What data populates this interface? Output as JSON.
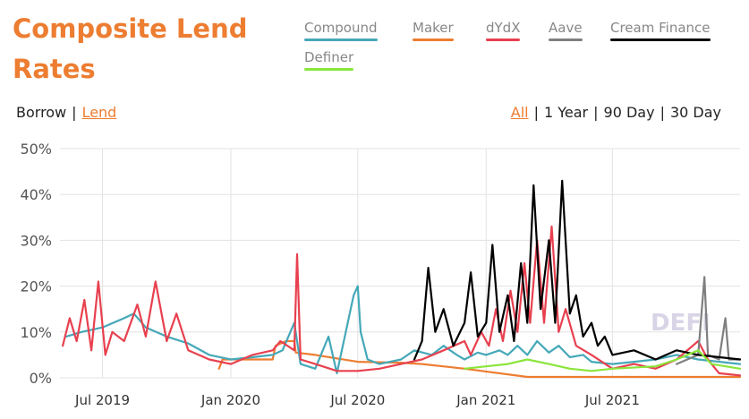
{
  "header": {
    "title": "Composite Lend Rates"
  },
  "legend": [
    {
      "name": "Compound",
      "color": "#45a8b8"
    },
    {
      "name": "Maker",
      "color": "#ed7d31"
    },
    {
      "name": "dYdX",
      "color": "#e8404f"
    },
    {
      "name": "Aave",
      "color": "#7f7f7f"
    },
    {
      "name": "Cream Finance",
      "color": "#000000"
    },
    {
      "name": "Definer",
      "color": "#8be53b"
    }
  ],
  "mode_toggle": {
    "borrow": "Borrow",
    "lend": "Lend",
    "sep": "|",
    "active": "Lend"
  },
  "range_toggle": {
    "all": "All",
    "one_year": "1 Year",
    "ninety_day": "90 Day",
    "thirty_day": "30 Day",
    "sep": "|",
    "active": "All"
  },
  "watermark": "DEFI",
  "chart_data": {
    "type": "line",
    "title": "Composite Lend Rates",
    "xlabel": "",
    "ylabel": "",
    "ylim": [
      0,
      50
    ],
    "y_ticks": [
      "0%",
      "10%",
      "20%",
      "30%",
      "40%",
      "50%"
    ],
    "x_ticks": [
      "Jul 2019",
      "Jan 2020",
      "Jul 2020",
      "Jan 2021",
      "Jul 2021"
    ],
    "x_tick_dates": [
      "2019-07-01",
      "2020-01-01",
      "2020-07-01",
      "2021-01-01",
      "2021-07-01"
    ],
    "xlim": [
      "2019-05-01",
      "2021-12-31"
    ],
    "grid": true,
    "series": [
      {
        "name": "Maker",
        "color": "#ed7d31",
        "points": [
          [
            "2019-12-15",
            2
          ],
          [
            "2019-12-20",
            4
          ],
          [
            "2020-03-01",
            4
          ],
          [
            "2020-03-05",
            7
          ],
          [
            "2020-03-20",
            8
          ],
          [
            "2020-04-01",
            8
          ],
          [
            "2020-04-03",
            5.5
          ],
          [
            "2020-05-01",
            5
          ],
          [
            "2020-07-01",
            3.5
          ],
          [
            "2020-09-01",
            3.3
          ],
          [
            "2020-10-01",
            3
          ],
          [
            "2020-12-01",
            2
          ],
          [
            "2021-03-01",
            0.2
          ],
          [
            "2021-12-31",
            0.2
          ]
        ]
      },
      {
        "name": "Compound",
        "color": "#45a8b8",
        "points": [
          [
            "2019-05-10",
            9
          ],
          [
            "2019-06-01",
            10
          ],
          [
            "2019-07-01",
            11
          ],
          [
            "2019-08-01",
            13
          ],
          [
            "2019-08-15",
            14
          ],
          [
            "2019-09-01",
            11
          ],
          [
            "2019-10-01",
            9
          ],
          [
            "2019-11-01",
            7.5
          ],
          [
            "2019-12-01",
            5
          ],
          [
            "2020-01-01",
            4
          ],
          [
            "2020-02-01",
            4.5
          ],
          [
            "2020-03-01",
            5
          ],
          [
            "2020-03-15",
            6
          ],
          [
            "2020-04-01",
            12
          ],
          [
            "2020-04-10",
            3
          ],
          [
            "2020-05-01",
            2
          ],
          [
            "2020-05-20",
            9
          ],
          [
            "2020-06-01",
            1
          ],
          [
            "2020-06-25",
            18
          ],
          [
            "2020-07-01",
            20
          ],
          [
            "2020-07-05",
            10
          ],
          [
            "2020-07-15",
            4
          ],
          [
            "2020-08-01",
            3
          ],
          [
            "2020-09-01",
            4
          ],
          [
            "2020-09-20",
            6
          ],
          [
            "2020-10-15",
            5
          ],
          [
            "2020-11-01",
            7
          ],
          [
            "2020-11-20",
            5
          ],
          [
            "2020-12-01",
            4
          ],
          [
            "2020-12-20",
            5.5
          ],
          [
            "2021-01-01",
            5
          ],
          [
            "2021-01-20",
            6
          ],
          [
            "2021-02-01",
            5
          ],
          [
            "2021-02-15",
            7
          ],
          [
            "2021-03-01",
            5
          ],
          [
            "2021-03-15",
            8
          ],
          [
            "2021-04-01",
            5.5
          ],
          [
            "2021-04-15",
            7
          ],
          [
            "2021-05-01",
            4.5
          ],
          [
            "2021-05-20",
            5
          ],
          [
            "2021-06-01",
            3.5
          ],
          [
            "2021-07-01",
            3
          ],
          [
            "2021-08-01",
            3.5
          ],
          [
            "2021-09-01",
            4
          ],
          [
            "2021-10-01",
            5
          ],
          [
            "2021-11-01",
            4
          ],
          [
            "2021-12-31",
            3
          ]
        ]
      },
      {
        "name": "dYdX",
        "color": "#e8404f",
        "points": [
          [
            "2019-05-05",
            7
          ],
          [
            "2019-05-15",
            13
          ],
          [
            "2019-05-25",
            8
          ],
          [
            "2019-06-05",
            17
          ],
          [
            "2019-06-15",
            6
          ],
          [
            "2019-06-25",
            21
          ],
          [
            "2019-07-05",
            5
          ],
          [
            "2019-07-15",
            10
          ],
          [
            "2019-08-01",
            8
          ],
          [
            "2019-08-20",
            16
          ],
          [
            "2019-09-01",
            9
          ],
          [
            "2019-09-15",
            21
          ],
          [
            "2019-10-01",
            8
          ],
          [
            "2019-10-15",
            14
          ],
          [
            "2019-11-01",
            6
          ],
          [
            "2019-12-01",
            4
          ],
          [
            "2020-01-01",
            3
          ],
          [
            "2020-02-01",
            5
          ],
          [
            "2020-03-01",
            6
          ],
          [
            "2020-03-12",
            8
          ],
          [
            "2020-04-01",
            6
          ],
          [
            "2020-04-05",
            27
          ],
          [
            "2020-04-10",
            4
          ],
          [
            "2020-05-01",
            3
          ],
          [
            "2020-06-01",
            1.5
          ],
          [
            "2020-07-01",
            1.5
          ],
          [
            "2020-08-01",
            2
          ],
          [
            "2020-09-01",
            3
          ],
          [
            "2020-10-01",
            4
          ],
          [
            "2020-11-01",
            6
          ],
          [
            "2020-12-01",
            8
          ],
          [
            "2020-12-10",
            5
          ],
          [
            "2020-12-25",
            10
          ],
          [
            "2021-01-05",
            7
          ],
          [
            "2021-01-15",
            15
          ],
          [
            "2021-01-25",
            8
          ],
          [
            "2021-02-05",
            19
          ],
          [
            "2021-02-15",
            10
          ],
          [
            "2021-02-25",
            25
          ],
          [
            "2021-03-05",
            12
          ],
          [
            "2021-03-15",
            30
          ],
          [
            "2021-03-25",
            12
          ],
          [
            "2021-04-05",
            33
          ],
          [
            "2021-04-15",
            10
          ],
          [
            "2021-04-25",
            15
          ],
          [
            "2021-05-10",
            7
          ],
          [
            "2021-06-01",
            5
          ],
          [
            "2021-07-01",
            2
          ],
          [
            "2021-08-01",
            3
          ],
          [
            "2021-09-01",
            2
          ],
          [
            "2021-10-01",
            4
          ],
          [
            "2021-11-01",
            8
          ],
          [
            "2021-11-15",
            4
          ],
          [
            "2021-12-01",
            1
          ],
          [
            "2021-12-31",
            0.5
          ]
        ]
      },
      {
        "name": "Aave",
        "color": "#7f7f7f",
        "points": [
          [
            "2021-10-01",
            3
          ],
          [
            "2021-11-01",
            5
          ],
          [
            "2021-11-10",
            22
          ],
          [
            "2021-11-15",
            5
          ],
          [
            "2021-12-01",
            4
          ],
          [
            "2021-12-10",
            13
          ],
          [
            "2021-12-15",
            4
          ],
          [
            "2021-12-31",
            4
          ]
        ]
      },
      {
        "name": "Cream Finance",
        "color": "#000000",
        "points": [
          [
            "2020-09-20",
            4
          ],
          [
            "2020-10-01",
            8
          ],
          [
            "2020-10-10",
            24
          ],
          [
            "2020-10-20",
            10
          ],
          [
            "2020-11-01",
            15
          ],
          [
            "2020-11-15",
            7
          ],
          [
            "2020-12-01",
            12
          ],
          [
            "2020-12-10",
            23
          ],
          [
            "2020-12-20",
            9
          ],
          [
            "2021-01-01",
            12
          ],
          [
            "2021-01-10",
            29
          ],
          [
            "2021-01-20",
            10
          ],
          [
            "2021-02-01",
            18
          ],
          [
            "2021-02-10",
            8
          ],
          [
            "2021-02-20",
            25
          ],
          [
            "2021-03-01",
            12
          ],
          [
            "2021-03-10",
            42
          ],
          [
            "2021-03-20",
            15
          ],
          [
            "2021-04-01",
            30
          ],
          [
            "2021-04-10",
            12
          ],
          [
            "2021-04-20",
            43
          ],
          [
            "2021-05-01",
            14
          ],
          [
            "2021-05-10",
            18
          ],
          [
            "2021-05-20",
            9
          ],
          [
            "2021-06-01",
            12
          ],
          [
            "2021-06-10",
            7
          ],
          [
            "2021-06-20",
            9
          ],
          [
            "2021-07-01",
            5
          ],
          [
            "2021-08-01",
            6
          ],
          [
            "2021-09-01",
            4
          ],
          [
            "2021-10-01",
            6
          ],
          [
            "2021-11-01",
            5
          ],
          [
            "2021-12-31",
            4
          ]
        ]
      },
      {
        "name": "Definer",
        "color": "#8be53b",
        "points": [
          [
            "2020-12-01",
            2
          ],
          [
            "2021-01-01",
            2.5
          ],
          [
            "2021-02-01",
            3
          ],
          [
            "2021-03-01",
            4
          ],
          [
            "2021-04-01",
            3
          ],
          [
            "2021-05-01",
            2
          ],
          [
            "2021-06-01",
            1.5
          ],
          [
            "2021-07-01",
            2
          ],
          [
            "2021-09-01",
            2.5
          ],
          [
            "2021-10-01",
            4
          ],
          [
            "2021-11-01",
            6
          ],
          [
            "2021-11-20",
            3
          ],
          [
            "2021-12-31",
            2
          ]
        ]
      }
    ]
  }
}
